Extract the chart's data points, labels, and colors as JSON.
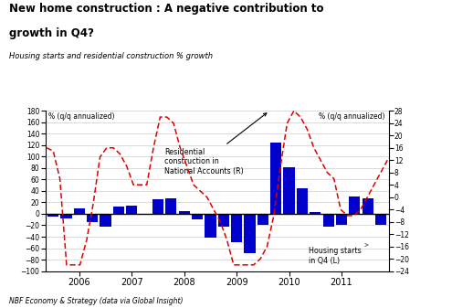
{
  "title1": "New home construction : A negative contribution to",
  "title2": "growth in Q4?",
  "subtitle": "Housing starts and residential construction % growth",
  "footnote": "NBF Economy & Strategy (data via Global Insight)",
  "left_label": "% (q/q annualized)",
  "right_label": "% (q/q annualized)",
  "ylim_left": [
    -100,
    180
  ],
  "ylim_right": [
    -24,
    28
  ],
  "yticks_left": [
    -100,
    -80,
    -60,
    -40,
    -20,
    0,
    20,
    40,
    60,
    80,
    100,
    120,
    140,
    160,
    180
  ],
  "yticks_right": [
    -24,
    -20,
    -16,
    -12,
    -8,
    -4,
    0,
    4,
    8,
    12,
    16,
    20,
    24,
    28
  ],
  "bar_color": "#0000CC",
  "line_color": "#DD0000",
  "bar_values": [
    -5,
    -8,
    10,
    -15,
    -22,
    13,
    15,
    -2,
    25,
    27,
    5,
    -10,
    -42,
    -22,
    -50,
    -68,
    -20,
    125,
    82,
    44,
    3,
    -22,
    -20,
    30,
    27,
    -20
  ],
  "line_values": [
    16,
    15,
    6,
    -22,
    -22,
    -22,
    -14,
    -2,
    13,
    16,
    16,
    14,
    10,
    4,
    4,
    4,
    16,
    26,
    26,
    24,
    16,
    10,
    4,
    2,
    0,
    -4,
    -8,
    -14,
    -22,
    -22,
    -22,
    -22,
    -20,
    -16,
    -6,
    10,
    24,
    28,
    26,
    22,
    16,
    12,
    8,
    6,
    -4,
    -6,
    -6,
    -4,
    0,
    4,
    8,
    12
  ],
  "year_positions": [
    2,
    6,
    10,
    14,
    18,
    22
  ],
  "year_labels": [
    "2006",
    "2007",
    "2008",
    "2009",
    "2010",
    "2011"
  ]
}
